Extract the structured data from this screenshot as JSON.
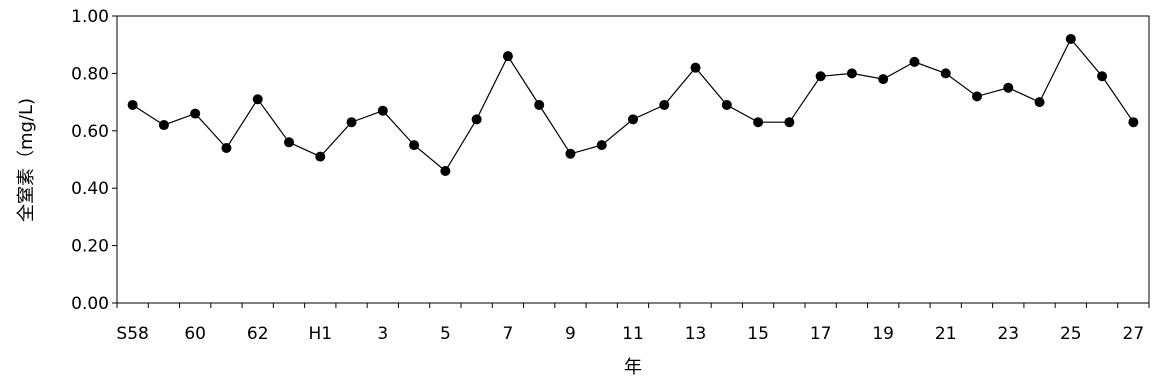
{
  "chart_data": {
    "type": "line",
    "xlabel": "年",
    "ylabel": "全窒素（mg/L)",
    "ylim": [
      0,
      1.0
    ],
    "yticks": [
      "0.00",
      "0.20",
      "0.40",
      "0.60",
      "0.80",
      "1.00"
    ],
    "x_tick_labels": [
      "S58",
      "60",
      "62",
      "H1",
      "3",
      "5",
      "7",
      "9",
      "11",
      "13",
      "15",
      "17",
      "19",
      "21",
      "23",
      "25",
      "27"
    ],
    "categories": [
      "S58",
      "S59",
      "S60",
      "S61",
      "S62",
      "S63",
      "H1",
      "H2",
      "H3",
      "H4",
      "H5",
      "H6",
      "H7",
      "H8",
      "H9",
      "H10",
      "H11",
      "H12",
      "H13",
      "H14",
      "H15",
      "H16",
      "H17",
      "H18",
      "H19",
      "H20",
      "H21",
      "H22",
      "H23",
      "H24",
      "H25",
      "H26",
      "H27"
    ],
    "values": [
      0.69,
      0.62,
      0.66,
      0.54,
      0.71,
      0.56,
      0.51,
      0.63,
      0.67,
      0.55,
      0.46,
      0.64,
      0.86,
      0.69,
      0.52,
      0.55,
      0.64,
      0.69,
      0.82,
      0.69,
      0.63,
      0.63,
      0.79,
      0.8,
      0.78,
      0.84,
      0.8,
      0.72,
      0.75,
      0.7,
      0.92,
      0.79,
      0.63
    ],
    "colors": {
      "line": "#000000",
      "marker": "#000000",
      "frame": "#000000"
    },
    "grid": false,
    "legend": "none"
  }
}
